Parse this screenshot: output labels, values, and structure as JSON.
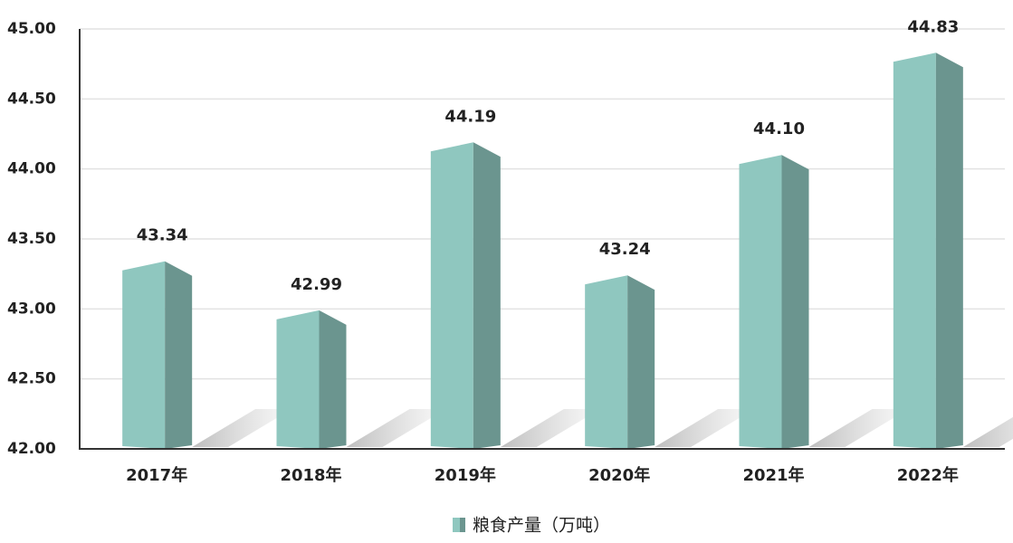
{
  "chart_data": {
    "type": "bar3d",
    "categories": [
      "2017年",
      "2018年",
      "2019年",
      "2020年",
      "2021年",
      "2022年"
    ],
    "series": [
      {
        "name": "粮食产量（万吨）",
        "color": "#8fc7bf",
        "values": [
          43.34,
          42.99,
          44.19,
          43.24,
          44.1,
          44.83
        ],
        "value_labels": [
          "43.34",
          "42.99",
          "44.19",
          "43.24",
          "44.10",
          "44.83"
        ]
      }
    ],
    "ylim": [
      42,
      45
    ],
    "yticks": [
      {
        "value": 42,
        "label": "42.00"
      },
      {
        "value": 42.5,
        "label": "42.50"
      },
      {
        "value": 43,
        "label": "43.00"
      },
      {
        "value": 43.5,
        "label": "43.50"
      },
      {
        "value": 44,
        "label": "44.00"
      },
      {
        "value": 44.5,
        "label": "44.50"
      },
      {
        "value": 45,
        "label": "45.00"
      }
    ],
    "grid": true,
    "legend": "bottom"
  }
}
